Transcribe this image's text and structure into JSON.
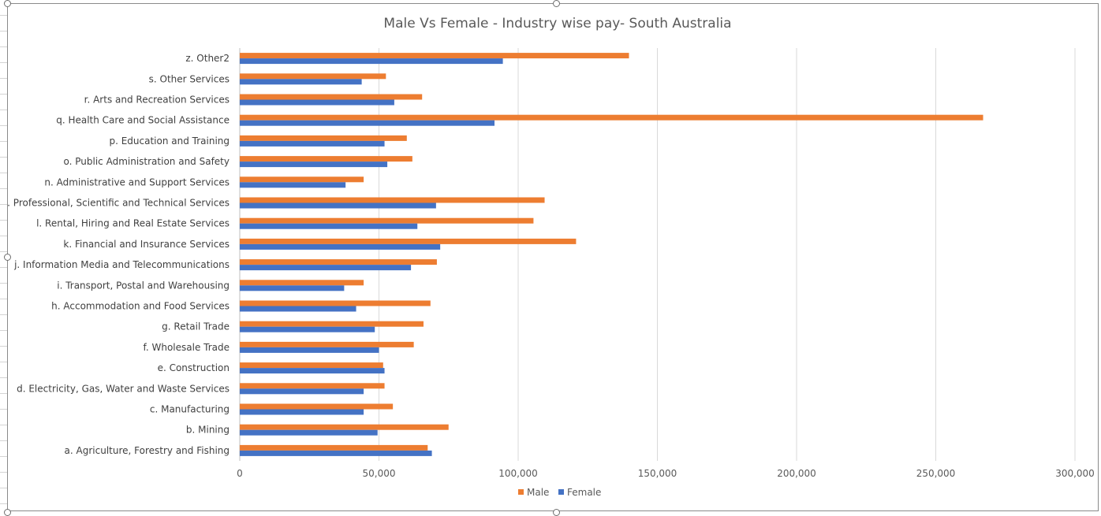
{
  "window": {
    "selected_object": "chart"
  },
  "chart_data": {
    "type": "bar",
    "orientation": "horizontal",
    "title": "Male Vs Female - Industry wise pay-  South Australia",
    "xlabel": "",
    "ylabel": "",
    "xlim": [
      0,
      300000
    ],
    "x_ticks": [
      0,
      50000,
      100000,
      150000,
      200000,
      250000,
      300000
    ],
    "x_tick_labels": [
      "0",
      "50,000",
      "100,000",
      "150,000",
      "200,000",
      "250,000",
      "300,000"
    ],
    "grid": "vertical major gridlines",
    "legend_position": "bottom",
    "categories": [
      "a. Agriculture, Forestry and Fishing",
      "b. Mining",
      "c. Manufacturing",
      "d. Electricity, Gas, Water and Waste Services",
      "e. Construction",
      "f. Wholesale Trade",
      "g. Retail Trade",
      "h. Accommodation and Food Services",
      "i. Transport, Postal and Warehousing",
      "j. Information Media and Telecommunications",
      "k. Financial and Insurance Services",
      "l. Rental, Hiring and Real Estate Services",
      "m. Professional, Scientific and Technical Services",
      "n. Administrative and Support Services",
      "o. Public Administration and Safety",
      "p. Education and Training",
      "q. Health Care and Social Assistance",
      "r. Arts and Recreation Services",
      "s. Other Services",
      "z. Other2"
    ],
    "series": [
      {
        "name": "Male",
        "color": "#ED7D31",
        "values": [
          67500,
          75000,
          55000,
          52000,
          51500,
          62500,
          66000,
          68500,
          44500,
          70800,
          120800,
          105500,
          109500,
          44500,
          62000,
          60000,
          267000,
          65500,
          52500,
          139800
        ]
      },
      {
        "name": "Female",
        "color": "#4472C4",
        "values": [
          69000,
          49500,
          44500,
          44500,
          52000,
          50000,
          48500,
          41800,
          37500,
          61500,
          72000,
          63800,
          70500,
          38000,
          53000,
          52000,
          91500,
          55500,
          43800,
          94500
        ]
      }
    ],
    "legend": [
      "Male",
      "Female"
    ],
    "gridline_color": "#D9D9D9",
    "axis_color": "#BFBFBF"
  }
}
